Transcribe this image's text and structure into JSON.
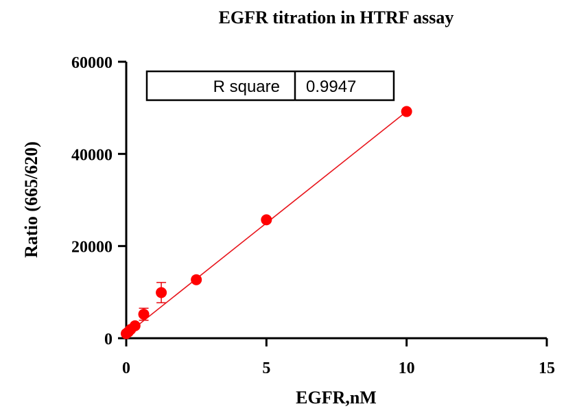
{
  "chart_data": {
    "type": "scatter",
    "title": "EGFR  titration in  HTRF assay",
    "xlabel": "EGFR,nM",
    "ylabel": "Ratio (665/620)",
    "xlim": [
      0,
      15
    ],
    "ylim": [
      0,
      60000
    ],
    "x_ticks": [
      0,
      5,
      10,
      15
    ],
    "y_ticks": [
      0,
      20000,
      40000,
      60000
    ],
    "x_tick_labels": [
      "0",
      "5",
      "10",
      "15"
    ],
    "y_tick_labels": [
      "0",
      "20000",
      "40000",
      "60000"
    ],
    "grid": false,
    "point_color": "#ff0000",
    "line_color": "#e8141b",
    "points": [
      {
        "x": 0.0,
        "y": 1000,
        "err": 0
      },
      {
        "x": 0.078,
        "y": 1400,
        "err": 0
      },
      {
        "x": 0.156,
        "y": 1900,
        "err": 0
      },
      {
        "x": 0.3125,
        "y": 2700,
        "err": 400
      },
      {
        "x": 0.625,
        "y": 5200,
        "err": 1300
      },
      {
        "x": 1.25,
        "y": 9900,
        "err": 2200
      },
      {
        "x": 2.5,
        "y": 12700,
        "err": 0
      },
      {
        "x": 5.0,
        "y": 25700,
        "err": 0
      },
      {
        "x": 10.0,
        "y": 49200,
        "err": 0
      }
    ],
    "fit": {
      "x_start": 0.0,
      "y_start": 800,
      "x_end": 10.0,
      "y_end": 49200
    },
    "stats_table": {
      "label": "R square",
      "value": "0.9947"
    }
  }
}
